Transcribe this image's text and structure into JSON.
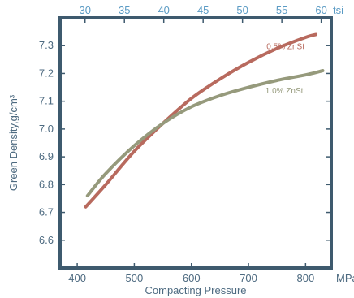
{
  "chart_data": {
    "type": "line",
    "xlabel": "Compacting Pressure",
    "ylabel": "Green Density,g/cm³",
    "x_unit": "MPa",
    "top_axis_unit": "tsi",
    "xlim": [
      370,
      845
    ],
    "ylim": [
      6.5,
      7.4
    ],
    "x_ticks": [
      400,
      500,
      600,
      700,
      800
    ],
    "y_ticks": [
      6.6,
      6.7,
      6.8,
      6.9,
      7.0,
      7.1,
      7.2,
      7.3
    ],
    "top_ticks": [
      30,
      35,
      40,
      45,
      50,
      55,
      60
    ],
    "top_tick_to_mpa": 13.79,
    "grid": false,
    "colors": {
      "frame": "#3e5a6e",
      "tick_text": "#4d6a80",
      "top_tick_text": "#5b9bc4"
    },
    "series": [
      {
        "name": "0.5% ZnSt",
        "color": "#b86a5e",
        "x": [
          415,
          450,
          500,
          550,
          600,
          650,
          700,
          750,
          800,
          818
        ],
        "y": [
          6.72,
          6.8,
          6.92,
          7.02,
          7.11,
          7.18,
          7.24,
          7.29,
          7.33,
          7.34
        ]
      },
      {
        "name": "1.0% ZnSt",
        "color": "#969a7c",
        "x": [
          418,
          450,
          500,
          550,
          600,
          650,
          700,
          750,
          800,
          830
        ],
        "y": [
          6.76,
          6.84,
          6.94,
          7.02,
          7.08,
          7.12,
          7.15,
          7.175,
          7.195,
          7.21
        ]
      }
    ]
  }
}
